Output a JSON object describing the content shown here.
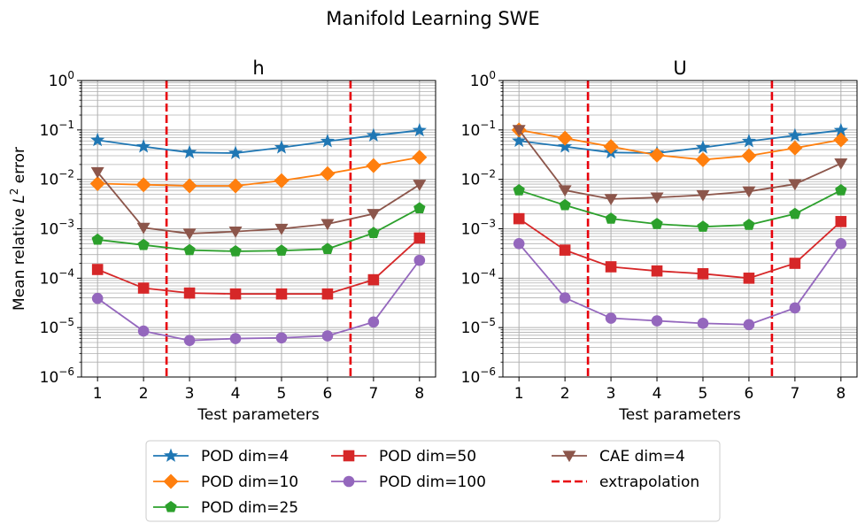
{
  "figure_title": "Manifold Learning SWE",
  "colors": {
    "pod4": "#1f77b4",
    "pod10": "#ff7f0e",
    "pod25": "#2ca02c",
    "pod50": "#d62728",
    "pod100": "#9467bd",
    "cae4": "#8c564b",
    "extrapolation": "#e8000b",
    "grid": "#b0b0b0"
  },
  "chart_data": [
    {
      "type": "line",
      "title": "h",
      "xlabel": "Test parameters",
      "ylabel": "Mean relative L2 error",
      "yscale": "log",
      "ylim": [
        1e-06,
        1
      ],
      "xlim": [
        0.65,
        8.35
      ],
      "x": [
        1,
        2,
        3,
        4,
        5,
        6,
        7,
        8
      ],
      "x_ticks": [
        "1",
        "2",
        "3",
        "4",
        "5",
        "6",
        "7",
        "8"
      ],
      "y_ticks": [
        {
          "base": "10",
          "exp": "0",
          "value": 1
        },
        {
          "base": "10",
          "exp": "−1",
          "value": 0.1
        },
        {
          "base": "10",
          "exp": "−2",
          "value": 0.01
        },
        {
          "base": "10",
          "exp": "−3",
          "value": 0.001
        },
        {
          "base": "10",
          "exp": "−4",
          "value": 0.0001
        },
        {
          "base": "10",
          "exp": "−5",
          "value": 1e-05
        },
        {
          "base": "10",
          "exp": "−6",
          "value": 1e-06
        }
      ],
      "extrapolation_x": [
        2.5,
        6.5
      ],
      "series": [
        {
          "name": "POD dim=4",
          "key": "pod4",
          "marker": "star",
          "values": [
            0.062,
            0.046,
            0.035,
            0.034,
            0.044,
            0.059,
            0.077,
            0.098
          ]
        },
        {
          "name": "POD dim=10",
          "key": "pod10",
          "marker": "diamond",
          "values": [
            0.0082,
            0.0078,
            0.0074,
            0.0074,
            0.0094,
            0.013,
            0.019,
            0.028
          ]
        },
        {
          "name": "POD dim=25",
          "key": "pod25",
          "marker": "pentagon",
          "values": [
            0.0006,
            0.00047,
            0.00037,
            0.00035,
            0.00036,
            0.00039,
            0.00082,
            0.0026
          ]
        },
        {
          "name": "POD dim=50",
          "key": "pod50",
          "marker": "square",
          "values": [
            0.00015,
            6.3e-05,
            5e-05,
            4.8e-05,
            4.8e-05,
            4.8e-05,
            9.3e-05,
            0.00065
          ]
        },
        {
          "name": "POD dim=100",
          "key": "pod100",
          "marker": "circle",
          "values": [
            3.9e-05,
            8.5e-06,
            5.5e-06,
            6e-06,
            6.2e-06,
            6.8e-06,
            1.3e-05,
            0.00023
          ]
        },
        {
          "name": "CAE dim=4",
          "key": "cae4",
          "marker": "triangle_down",
          "values": [
            0.014,
            0.00105,
            0.0008,
            0.00088,
            0.001,
            0.00125,
            0.002,
            0.0078
          ]
        }
      ]
    },
    {
      "type": "line",
      "title": "U",
      "xlabel": "Test parameters",
      "ylabel": "",
      "yscale": "log",
      "ylim": [
        1e-06,
        1
      ],
      "xlim": [
        0.65,
        8.35
      ],
      "x": [
        1,
        2,
        3,
        4,
        5,
        6,
        7,
        8
      ],
      "x_ticks": [
        "1",
        "2",
        "3",
        "4",
        "5",
        "6",
        "7",
        "8"
      ],
      "y_ticks": [
        {
          "base": "10",
          "exp": "0",
          "value": 1
        },
        {
          "base": "10",
          "exp": "−1",
          "value": 0.1
        },
        {
          "base": "10",
          "exp": "−2",
          "value": 0.01
        },
        {
          "base": "10",
          "exp": "−3",
          "value": 0.001
        },
        {
          "base": "10",
          "exp": "−4",
          "value": 0.0001
        },
        {
          "base": "10",
          "exp": "−5",
          "value": 1e-05
        },
        {
          "base": "10",
          "exp": "−6",
          "value": 1e-06
        }
      ],
      "extrapolation_x": [
        2.5,
        6.5
      ],
      "series": [
        {
          "name": "POD dim=4",
          "key": "pod4",
          "marker": "star",
          "values": [
            0.06,
            0.046,
            0.035,
            0.034,
            0.044,
            0.059,
            0.077,
            0.098
          ]
        },
        {
          "name": "POD dim=10",
          "key": "pod10",
          "marker": "diamond",
          "values": [
            0.1,
            0.068,
            0.046,
            0.031,
            0.025,
            0.03,
            0.043,
            0.063
          ]
        },
        {
          "name": "POD dim=25",
          "key": "pod25",
          "marker": "pentagon",
          "values": [
            0.006,
            0.003,
            0.0016,
            0.00125,
            0.0011,
            0.0012,
            0.002,
            0.006
          ]
        },
        {
          "name": "POD dim=50",
          "key": "pod50",
          "marker": "square",
          "values": [
            0.0016,
            0.00037,
            0.00017,
            0.00014,
            0.000123,
            0.0001,
            0.0002,
            0.0014
          ]
        },
        {
          "name": "POD dim=100",
          "key": "pod100",
          "marker": "circle",
          "values": [
            0.0005,
            4e-05,
            1.55e-05,
            1.37e-05,
            1.22e-05,
            1.15e-05,
            2.5e-05,
            0.0005
          ]
        },
        {
          "name": "CAE dim=4",
          "key": "cae4",
          "marker": "triangle_down",
          "values": [
            0.1,
            0.006,
            0.004,
            0.0043,
            0.0048,
            0.0057,
            0.008,
            0.021
          ]
        }
      ]
    }
  ],
  "legend": {
    "placement": "bottom-center",
    "items": [
      {
        "label": "POD dim=4",
        "key": "pod4",
        "marker": "star"
      },
      {
        "label": "POD dim=10",
        "key": "pod10",
        "marker": "diamond"
      },
      {
        "label": "POD dim=25",
        "key": "pod25",
        "marker": "pentagon"
      },
      {
        "label": "POD dim=50",
        "key": "pod50",
        "marker": "square"
      },
      {
        "label": "POD dim=100",
        "key": "pod100",
        "marker": "circle"
      },
      {
        "label": "CAE dim=4",
        "key": "cae4",
        "marker": "triangle_down"
      },
      {
        "label": "extrapolation",
        "key": "extrapolation",
        "marker": "dashed_line"
      }
    ]
  }
}
